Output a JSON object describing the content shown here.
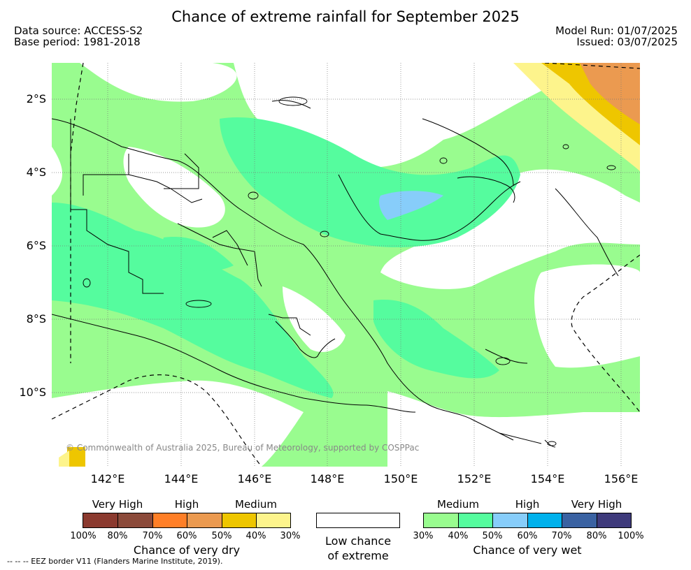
{
  "title": "Chance of extreme rainfall for September 2025",
  "data_source": "Data source: ACCESS-S2",
  "base_period": "Base period: 1981-2018",
  "model_run": "Model Run: 01/07/2025",
  "issued": "Issued: 03/07/2025",
  "lat_labels": [
    "2°S",
    "4°S",
    "6°S",
    "8°S",
    "10°S"
  ],
  "lon_labels": [
    "142°E",
    "144°E",
    "146°E",
    "148°E",
    "150°E",
    "152°E",
    "154°E",
    "156°E"
  ],
  "credit": "© Commonwealth of Australia 2025, Bureau of Meteorology, supported by COSPPac",
  "eez_note": "--  --  -- EEZ border V11 (Flanders Marine Institute, 2019).",
  "colors": {
    "dry_very_high_1": "#8b3a2f",
    "dry_very_high_2": "#8b4a3a",
    "dry_high_1": "#ff7f27",
    "dry_high_2": "#eb9a50",
    "dry_medium_1": "#eec600",
    "dry_medium_2": "#fdf48c",
    "wet_medium_1": "#99fc8f",
    "wet_medium_2": "#55fc9e",
    "wet_high_1": "#87cdfa",
    "wet_high_2": "#00b1ec",
    "wet_very_high_1": "#3a62a2",
    "wet_very_high_2": "#3e3a7b"
  },
  "legend": {
    "dry": {
      "categories": [
        "Very High",
        "High",
        "Medium"
      ],
      "ticks": [
        "100%",
        "80%",
        "70%",
        "60%",
        "50%",
        "40%",
        "30%"
      ],
      "caption": "Chance of very dry"
    },
    "low": {
      "caption_line1": "Low chance",
      "caption_line2": "of extreme"
    },
    "wet": {
      "categories": [
        "Medium",
        "High",
        "Very High"
      ],
      "ticks": [
        "30%",
        "40%",
        "50%",
        "60%",
        "70%",
        "80%",
        "100%"
      ],
      "caption": "Chance of very wet"
    }
  }
}
